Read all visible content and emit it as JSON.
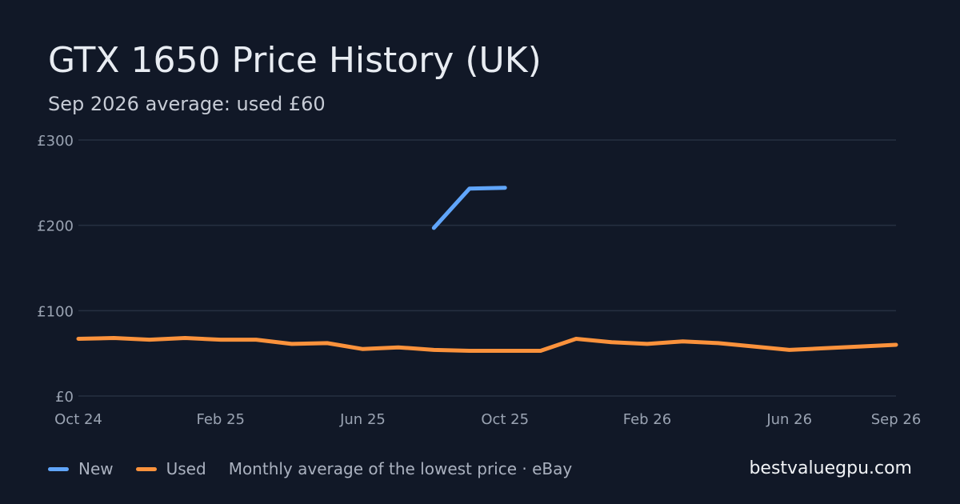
{
  "title": "GTX 1650 Price History (UK)",
  "subtitle": "Sep 2026 average: used £60",
  "legend": {
    "new_label": "New",
    "used_label": "Used",
    "note": "Monthly average of the lowest price · eBay"
  },
  "brand": "bestvaluegpu.com",
  "colors": {
    "new": "#60a5fa",
    "used": "#fb923c",
    "grid": "#263041",
    "background": "#111827"
  },
  "chart_data": {
    "type": "line",
    "title": "GTX 1650 Price History (UK)",
    "subtitle": "Sep 2026 average: used £60",
    "x": [
      "2024-10",
      "2024-11",
      "2024-12",
      "2025-01",
      "2025-02",
      "2025-03",
      "2025-04",
      "2025-05",
      "2025-06",
      "2025-07",
      "2025-08",
      "2025-09",
      "2025-10",
      "2025-11",
      "2025-12",
      "2026-01",
      "2026-02",
      "2026-03",
      "2026-04",
      "2026-05",
      "2026-06",
      "2026-07",
      "2026-08",
      "2026-09"
    ],
    "x_tick_labels": [
      {
        "x": "2024-10",
        "label": "Oct 24"
      },
      {
        "x": "2025-02",
        "label": "Feb 25"
      },
      {
        "x": "2025-06",
        "label": "Jun 25"
      },
      {
        "x": "2025-10",
        "label": "Oct 25"
      },
      {
        "x": "2026-02",
        "label": "Feb 26"
      },
      {
        "x": "2026-06",
        "label": "Jun 26"
      },
      {
        "x": "2026-09",
        "label": "Sep 26"
      }
    ],
    "y_ticks": [
      {
        "value": 0,
        "label": "£0"
      },
      {
        "value": 100,
        "label": "£100"
      },
      {
        "value": 200,
        "label": "£200"
      },
      {
        "value": 300,
        "label": "£300"
      }
    ],
    "ylim": [
      0,
      300
    ],
    "grid": true,
    "legend_position": "bottom-left",
    "series": [
      {
        "name": "New",
        "values": [
          null,
          null,
          null,
          null,
          null,
          null,
          null,
          null,
          null,
          null,
          197,
          243,
          244,
          null,
          null,
          null,
          null,
          null,
          null,
          null,
          null,
          null,
          null,
          null
        ]
      },
      {
        "name": "Used",
        "values": [
          67,
          68,
          66,
          68,
          66,
          66,
          61,
          62,
          55,
          57,
          54,
          53,
          53,
          53,
          67,
          63,
          61,
          64,
          62,
          58,
          54,
          56,
          58,
          60
        ]
      }
    ]
  }
}
